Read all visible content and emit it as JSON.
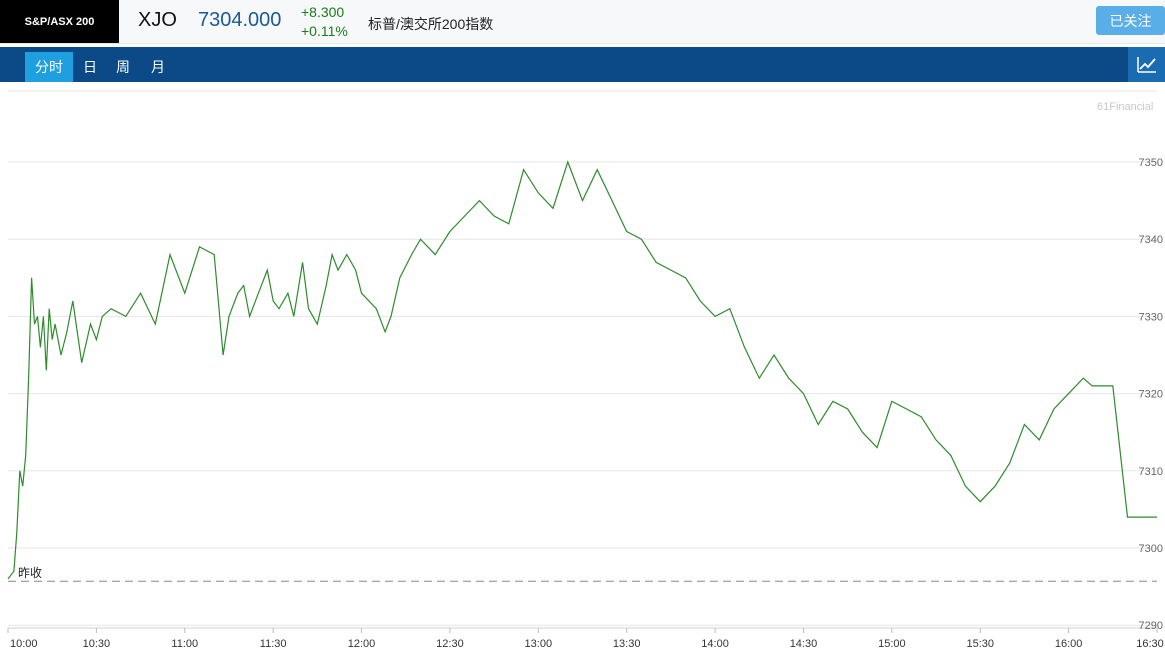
{
  "header": {
    "logo_text": "S&P/ASX 200",
    "symbol": "XJO",
    "price": "7304.000",
    "change": "+8.300",
    "change_pct": "+0.11%",
    "name": "标普/澳交所200指数",
    "follow_label": "已关注"
  },
  "tabs": [
    {
      "label": "分时",
      "active": true
    },
    {
      "label": "日",
      "active": false
    },
    {
      "label": "周",
      "active": false
    },
    {
      "label": "月",
      "active": false
    }
  ],
  "icons": {
    "chart_toggle": "line-chart-icon"
  },
  "watermark": "61Financial",
  "colors": {
    "line": "#2e8b2e",
    "grid": "#e6e6e6",
    "accent": "#0b4a86",
    "up": "#1a7d1a"
  },
  "chart_data": {
    "type": "line",
    "prev_close": 7295.7,
    "prev_close_label": "昨收",
    "ylim": [
      7290,
      7350
    ],
    "y_ticks": [
      7350,
      7340,
      7330,
      7320,
      7310,
      7300,
      7290
    ],
    "x_tick_labels": [
      "10:00",
      "10:30",
      "11:00",
      "11:30",
      "12:00",
      "12:30",
      "13:00",
      "13:30",
      "14:00",
      "14:30",
      "15:00",
      "15:30",
      "16:00",
      "16:30"
    ],
    "x_range_minutes": [
      0,
      390
    ],
    "series": [
      {
        "x": [
          0,
          2,
          3,
          4,
          5,
          6,
          7,
          8,
          9,
          10,
          11,
          12,
          13,
          14,
          15,
          16,
          18,
          20,
          22,
          25,
          28,
          30,
          32,
          35,
          40,
          45,
          50,
          55,
          60,
          65,
          70,
          73,
          75,
          78,
          80,
          82,
          85,
          88,
          90,
          92,
          95,
          97,
          100,
          102,
          105,
          108,
          110,
          112,
          115,
          118,
          120,
          125,
          128,
          130,
          133,
          137,
          140,
          145,
          150,
          155,
          160,
          165,
          170,
          175,
          180,
          185,
          190,
          195,
          200,
          205,
          210,
          215,
          220,
          225,
          230,
          235,
          240,
          245,
          250,
          255,
          260,
          265,
          270,
          275,
          280,
          285,
          290,
          295,
          300,
          305,
          310,
          315,
          320,
          325,
          330,
          335,
          340,
          345,
          350,
          355,
          360,
          365,
          368,
          370,
          375,
          380,
          385,
          390
        ],
        "y": [
          7296,
          7297,
          7302,
          7310,
          7308,
          7312,
          7322,
          7335,
          7329,
          7330,
          7326,
          7330,
          7323,
          7331,
          7327,
          7329,
          7325,
          7328,
          7332,
          7324,
          7329,
          7327,
          7330,
          7331,
          7330,
          7333,
          7329,
          7338,
          7333,
          7339,
          7338,
          7325,
          7330,
          7333,
          7334,
          7330,
          7333,
          7336,
          7332,
          7331,
          7333,
          7330,
          7337,
          7331,
          7329,
          7334,
          7338,
          7336,
          7338,
          7336,
          7333,
          7331,
          7328,
          7330,
          7335,
          7338,
          7340,
          7338,
          7341,
          7343,
          7345,
          7343,
          7342,
          7349,
          7346,
          7344,
          7350,
          7345,
          7349,
          7345,
          7341,
          7340,
          7337,
          7336,
          7335,
          7332,
          7330,
          7331,
          7326,
          7322,
          7325,
          7322,
          7320,
          7316,
          7319,
          7318,
          7315,
          7313,
          7319,
          7318,
          7317,
          7314,
          7312,
          7308,
          7306,
          7308,
          7311,
          7316,
          7314,
          7318,
          7320,
          7322,
          7321,
          7321,
          7321,
          7304,
          7304,
          7304
        ]
      }
    ],
    "grid": true
  }
}
